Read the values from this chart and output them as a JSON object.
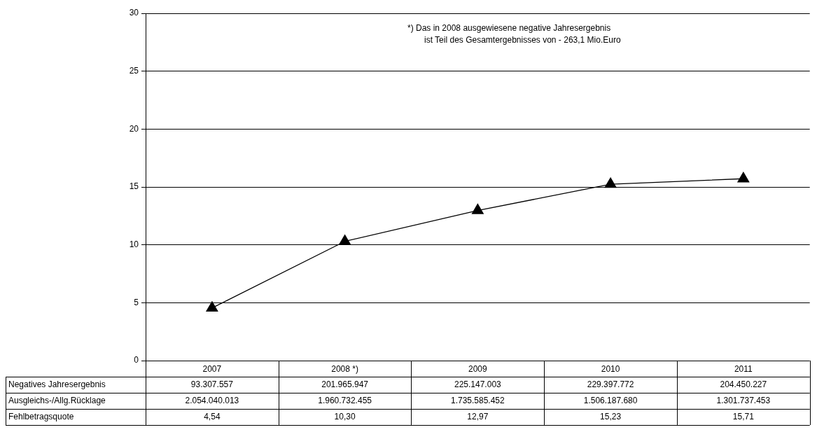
{
  "chart_data": {
    "type": "line",
    "categories": [
      "2007",
      "2008 *)",
      "2009",
      "2010",
      "2011"
    ],
    "series": [
      {
        "type": "other",
        "name": "Negatives Jahresergebnis",
        "values": [
          null,
          null,
          null,
          null,
          null
        ],
        "value_labels": [
          "93.307.557",
          "201.965.947",
          "225.147.003",
          "229.397.772",
          "204.450.227"
        ]
      },
      {
        "type": "other",
        "name": "Ausgleichs-/Allg.Rücklage",
        "values": [
          null,
          null,
          null,
          null,
          null
        ],
        "value_labels": [
          "2.054.040.013",
          "1.960.732.455",
          "1.735.585.452",
          "1.506.187.680",
          "1.301.737.453"
        ]
      },
      {
        "name": "Fehlbetragsquote",
        "color": "#000000",
        "values": [
          4.54,
          10.3,
          12.97,
          15.23,
          15.71
        ],
        "value_labels": [
          "4,54",
          "10,30",
          "12,97",
          "15,23",
          "15,71"
        ]
      }
    ],
    "ylim": [
      0,
      30
    ],
    "yticks": [
      0,
      5,
      10,
      15,
      20,
      25,
      30
    ],
    "grid": "y",
    "legend": false,
    "marker": "triangle",
    "line_style": "solid",
    "annotations": [
      "*) Das in 2008 ausgewiesene negative Jahresergebnis",
      "ist Teil des Gesamtergebnisses von - 263,1 Mio.Euro"
    ]
  }
}
